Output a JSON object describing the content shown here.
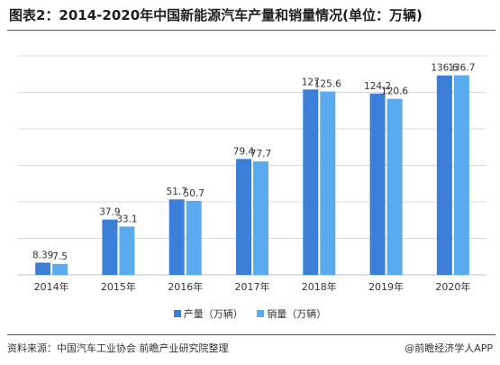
{
  "title": "图表2：2014-2020年中国新能源汽车产量和销量情况(单位：万辆)",
  "source": "资料来源：中国汽车工业协会 前瞻产业研究院整理",
  "credit": "@前瞻经济学人APP",
  "colors": {
    "production": "#3b7fd9",
    "sales": "#5aaaf0",
    "grid": "#d9d9d9",
    "rule": "#2b5ea8"
  },
  "chart_data": {
    "type": "bar",
    "categories": [
      "2014年",
      "2015年",
      "2016年",
      "2017年",
      "2018年",
      "2019年",
      "2020年"
    ],
    "series": [
      {
        "name": "产量（万辆）",
        "values": [
          8.39,
          37.9,
          51.7,
          79.4,
          127,
          124.2,
          136.6
        ],
        "labels": [
          "8.39",
          "37.9",
          "51.7",
          "79.4",
          "127",
          "124.2",
          "136.6"
        ]
      },
      {
        "name": "销量（万辆）",
        "values": [
          7.5,
          33.1,
          50.7,
          77.7,
          125.6,
          120.6,
          136.7
        ],
        "labels": [
          "7.5",
          "33.1",
          "50.7",
          "77.7",
          "125.6",
          "120.6",
          "136.7"
        ]
      }
    ],
    "ylim": [
      0,
      150
    ],
    "grid": true,
    "legend": "bottom"
  }
}
